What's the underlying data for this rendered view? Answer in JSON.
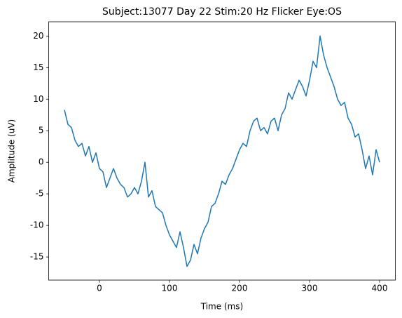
{
  "chart_data": {
    "type": "line",
    "title": "Subject:13077 Day 22 Stim:20 Hz Flicker Eye:OS",
    "x_label": "Time (ms)",
    "y_label": "Amplitude (uV)",
    "x": [
      -50,
      -45,
      -40,
      -35,
      -30,
      -25,
      -20,
      -15,
      -10,
      -5,
      0,
      5,
      10,
      15,
      20,
      25,
      30,
      35,
      40,
      45,
      50,
      55,
      60,
      65,
      70,
      75,
      80,
      85,
      90,
      95,
      100,
      105,
      110,
      115,
      120,
      125,
      130,
      135,
      140,
      145,
      150,
      155,
      160,
      165,
      170,
      175,
      180,
      185,
      190,
      195,
      200,
      205,
      210,
      215,
      220,
      225,
      230,
      235,
      240,
      245,
      250,
      255,
      260,
      265,
      270,
      275,
      280,
      285,
      290,
      295,
      300,
      305,
      310,
      315,
      320,
      325,
      330,
      335,
      340,
      345,
      350,
      355,
      360,
      365,
      370,
      375,
      380,
      385,
      390,
      395,
      400
    ],
    "values": [
      8.3,
      6.0,
      5.5,
      3.5,
      2.5,
      3.0,
      1.0,
      2.5,
      0.0,
      1.5,
      -1.0,
      -1.5,
      -4.0,
      -2.5,
      -1.0,
      -2.5,
      -3.5,
      -4.0,
      -5.5,
      -5.0,
      -4.0,
      -5.0,
      -3.0,
      0.0,
      -5.5,
      -4.5,
      -7.0,
      -7.5,
      -8.0,
      -10.0,
      -11.5,
      -12.5,
      -13.5,
      -11.0,
      -13.5,
      -16.5,
      -15.5,
      -13.0,
      -14.5,
      -12.0,
      -10.5,
      -9.5,
      -7.0,
      -6.5,
      -5.0,
      -3.0,
      -3.5,
      -2.0,
      -1.0,
      0.5,
      2.0,
      3.0,
      2.5,
      5.0,
      6.5,
      7.0,
      5.0,
      5.5,
      4.5,
      6.5,
      7.0,
      5.0,
      7.5,
      8.5,
      11.0,
      10.0,
      11.5,
      13.0,
      12.0,
      10.5,
      13.0,
      16.0,
      15.0,
      20.0,
      17.0,
      15.0,
      13.5,
      12.0,
      10.0,
      9.0,
      9.5,
      7.0,
      6.0,
      4.0,
      4.5,
      2.0,
      -1.0,
      1.0,
      -2.0,
      2.0,
      0.0
    ],
    "color": "#1f77b4",
    "xlim": [
      -72.5,
      422.5
    ],
    "xticks": [
      0,
      100,
      200,
      300,
      400
    ],
    "ylim": [
      -18.66,
      22.26
    ],
    "yticks": [
      -15,
      -10,
      -5,
      0,
      5,
      10,
      15,
      20
    ],
    "grid": false
  }
}
